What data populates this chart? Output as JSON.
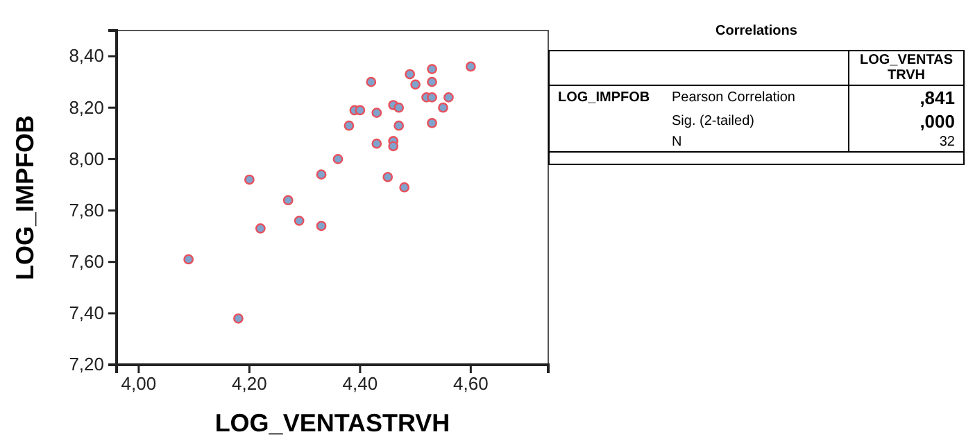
{
  "chart_data": [
    {
      "type": "scatter",
      "xlabel": "LOG_VENTASTRVH",
      "ylabel": "LOG_IMPFOB",
      "marker": "circle",
      "grid": false,
      "xlim": [
        3.96,
        4.74
      ],
      "ylim": [
        7.2,
        8.5
      ],
      "xticks": [
        {
          "value": 4.0,
          "label": "4,00"
        },
        {
          "value": 4.2,
          "label": "4,20"
        },
        {
          "value": 4.4,
          "label": "4,40"
        },
        {
          "value": 4.6,
          "label": "4,60"
        }
      ],
      "yticks": [
        {
          "value": 7.2,
          "label": "7,20"
        },
        {
          "value": 7.4,
          "label": "7,40"
        },
        {
          "value": 7.6,
          "label": "7,60"
        },
        {
          "value": 7.8,
          "label": "7,80"
        },
        {
          "value": 8.0,
          "label": "8,00"
        },
        {
          "value": 8.2,
          "label": "8,20"
        },
        {
          "value": 8.4,
          "label": "8,40"
        }
      ],
      "series": [
        {
          "color": "#7fa3cc",
          "x": [
            4.09,
            4.18,
            4.2,
            4.22,
            4.27,
            4.29,
            4.33,
            4.33,
            4.36,
            4.38,
            4.39,
            4.4,
            4.42,
            4.43,
            4.43,
            4.45,
            4.46,
            4.47,
            4.47,
            4.46,
            4.46,
            4.48,
            4.49,
            4.5,
            4.53,
            4.53,
            4.52,
            4.53,
            4.53,
            4.55,
            4.56,
            4.6
          ],
          "values": [
            7.61,
            7.38,
            7.92,
            7.73,
            7.84,
            7.76,
            7.94,
            7.74,
            8.0,
            8.13,
            8.19,
            8.19,
            8.3,
            8.18,
            8.06,
            7.93,
            8.21,
            8.2,
            8.13,
            8.07,
            8.05,
            7.89,
            8.33,
            8.29,
            8.3,
            8.35,
            8.24,
            8.24,
            8.14,
            8.2,
            8.24,
            8.36
          ]
        }
      ]
    },
    {
      "type": "other",
      "title": "Correlations",
      "annotations": [
        "LOG_VENTASTRVH",
        "LOG_IMPFOB",
        "Pearson Correlation",
        ",841",
        "Sig. (2-tailed)",
        ",000",
        "N",
        "32"
      ]
    }
  ]
}
